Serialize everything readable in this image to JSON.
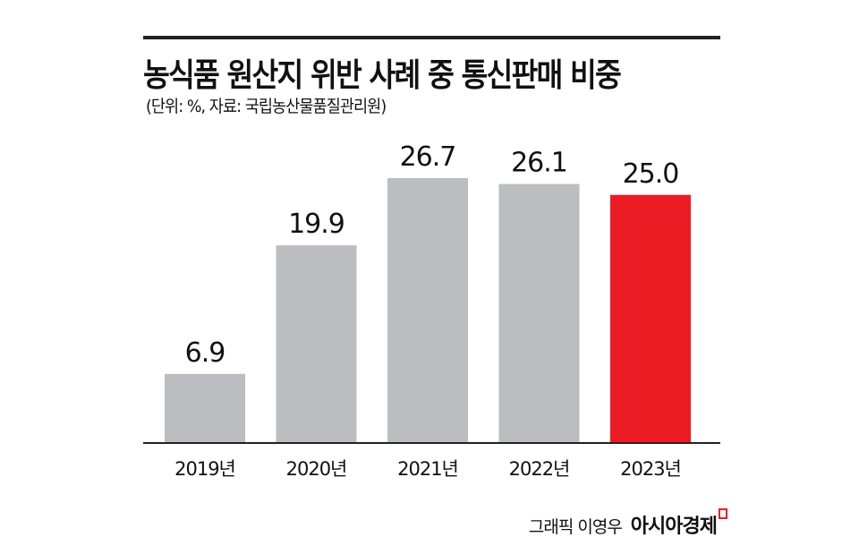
{
  "chart_data": {
    "type": "bar",
    "title": "농식품 원산지 위반 사례 중 통신판매 비중",
    "subtitle": "(단위: %, 자료: 국립농산물품질관리원)",
    "categories": [
      "2019년",
      "2020년",
      "2021년",
      "2022년",
      "2023년"
    ],
    "values": [
      6.9,
      19.9,
      26.7,
      26.1,
      25.0
    ],
    "value_labels": [
      "6.9",
      "19.9",
      "26.7",
      "26.1",
      "25.0"
    ],
    "ylim": [
      0,
      30
    ],
    "grid": false,
    "colors": {
      "default": "#bcbdc1",
      "highlight": "#ed1c24"
    },
    "highlight_index": 4
  },
  "credit": {
    "author": "그래픽 이영우",
    "logo": "아시아경제"
  }
}
